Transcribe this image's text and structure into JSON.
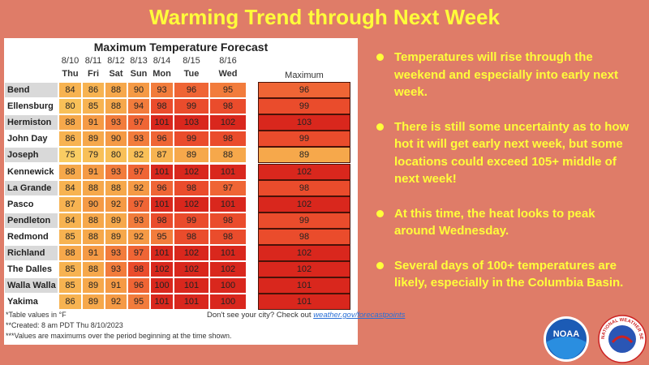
{
  "title": "Warming Trend through Next Week",
  "table": {
    "title": "Maximum Temperature Forecast",
    "dates": [
      "8/10",
      "8/11",
      "8/12",
      "8/13",
      "8/14",
      "8/15",
      "8/16"
    ],
    "days": [
      "Thu",
      "Fri",
      "Sat",
      "Sun",
      "Mon",
      "Tue",
      "Wed"
    ],
    "max_header": "Maximum",
    "rows": [
      {
        "city": "Bend",
        "values": [
          84,
          86,
          88,
          90,
          93,
          96,
          95
        ],
        "max": 96
      },
      {
        "city": "Ellensburg",
        "values": [
          80,
          85,
          88,
          94,
          98,
          99,
          98
        ],
        "max": 99
      },
      {
        "city": "Hermiston",
        "values": [
          88,
          91,
          93,
          97,
          101,
          103,
          102
        ],
        "max": 103
      },
      {
        "city": "John Day",
        "values": [
          86,
          89,
          90,
          93,
          96,
          99,
          98
        ],
        "max": 99
      },
      {
        "city": "Joseph",
        "values": [
          75,
          79,
          80,
          82,
          87,
          89,
          88
        ],
        "max": 89
      },
      {
        "city": "Kennewick",
        "values": [
          88,
          91,
          93,
          97,
          101,
          102,
          101
        ],
        "max": 102
      },
      {
        "city": "La Grande",
        "values": [
          84,
          88,
          88,
          92,
          96,
          98,
          97
        ],
        "max": 98
      },
      {
        "city": "Pasco",
        "values": [
          87,
          90,
          92,
          97,
          101,
          102,
          101
        ],
        "max": 102
      },
      {
        "city": "Pendleton",
        "values": [
          84,
          88,
          89,
          93,
          98,
          99,
          98
        ],
        "max": 99
      },
      {
        "city": "Redmond",
        "values": [
          85,
          88,
          89,
          92,
          95,
          98,
          98
        ],
        "max": 98
      },
      {
        "city": "Richland",
        "values": [
          88,
          91,
          93,
          97,
          101,
          102,
          101
        ],
        "max": 102
      },
      {
        "city": "The Dalles",
        "values": [
          85,
          88,
          93,
          98,
          102,
          102,
          102
        ],
        "max": 102
      },
      {
        "city": "Walla Walla",
        "values": [
          85,
          89,
          91,
          96,
          100,
          101,
          100
        ],
        "max": 101
      },
      {
        "city": "Yakima",
        "values": [
          86,
          89,
          92,
          95,
          101,
          101,
          100
        ],
        "max": 101
      }
    ],
    "footnotes": [
      "*Table values in °F",
      "**Created: 8 am PDT Thu 8/10/2023",
      "***Values are maximums over the period beginning at the time shown."
    ],
    "city_note": "Don't see your city? Check out",
    "city_link": "weather.gov/forecastpoints"
  },
  "bullets": [
    "Temperatures will rise through the weekend and especially into early next week.",
    "There is still some uncertainty as to how hot it will get early next week, but some locations could exceed 105+ middle of next week!",
    "At this time, the heat looks to peak around Wednesday.",
    "Several days of 100+ temperatures are likely, especially in the Columbia Basin."
  ],
  "logos": {
    "noaa": "NOAA",
    "nws": "NATIONAL WEATHER SERVICE"
  }
}
